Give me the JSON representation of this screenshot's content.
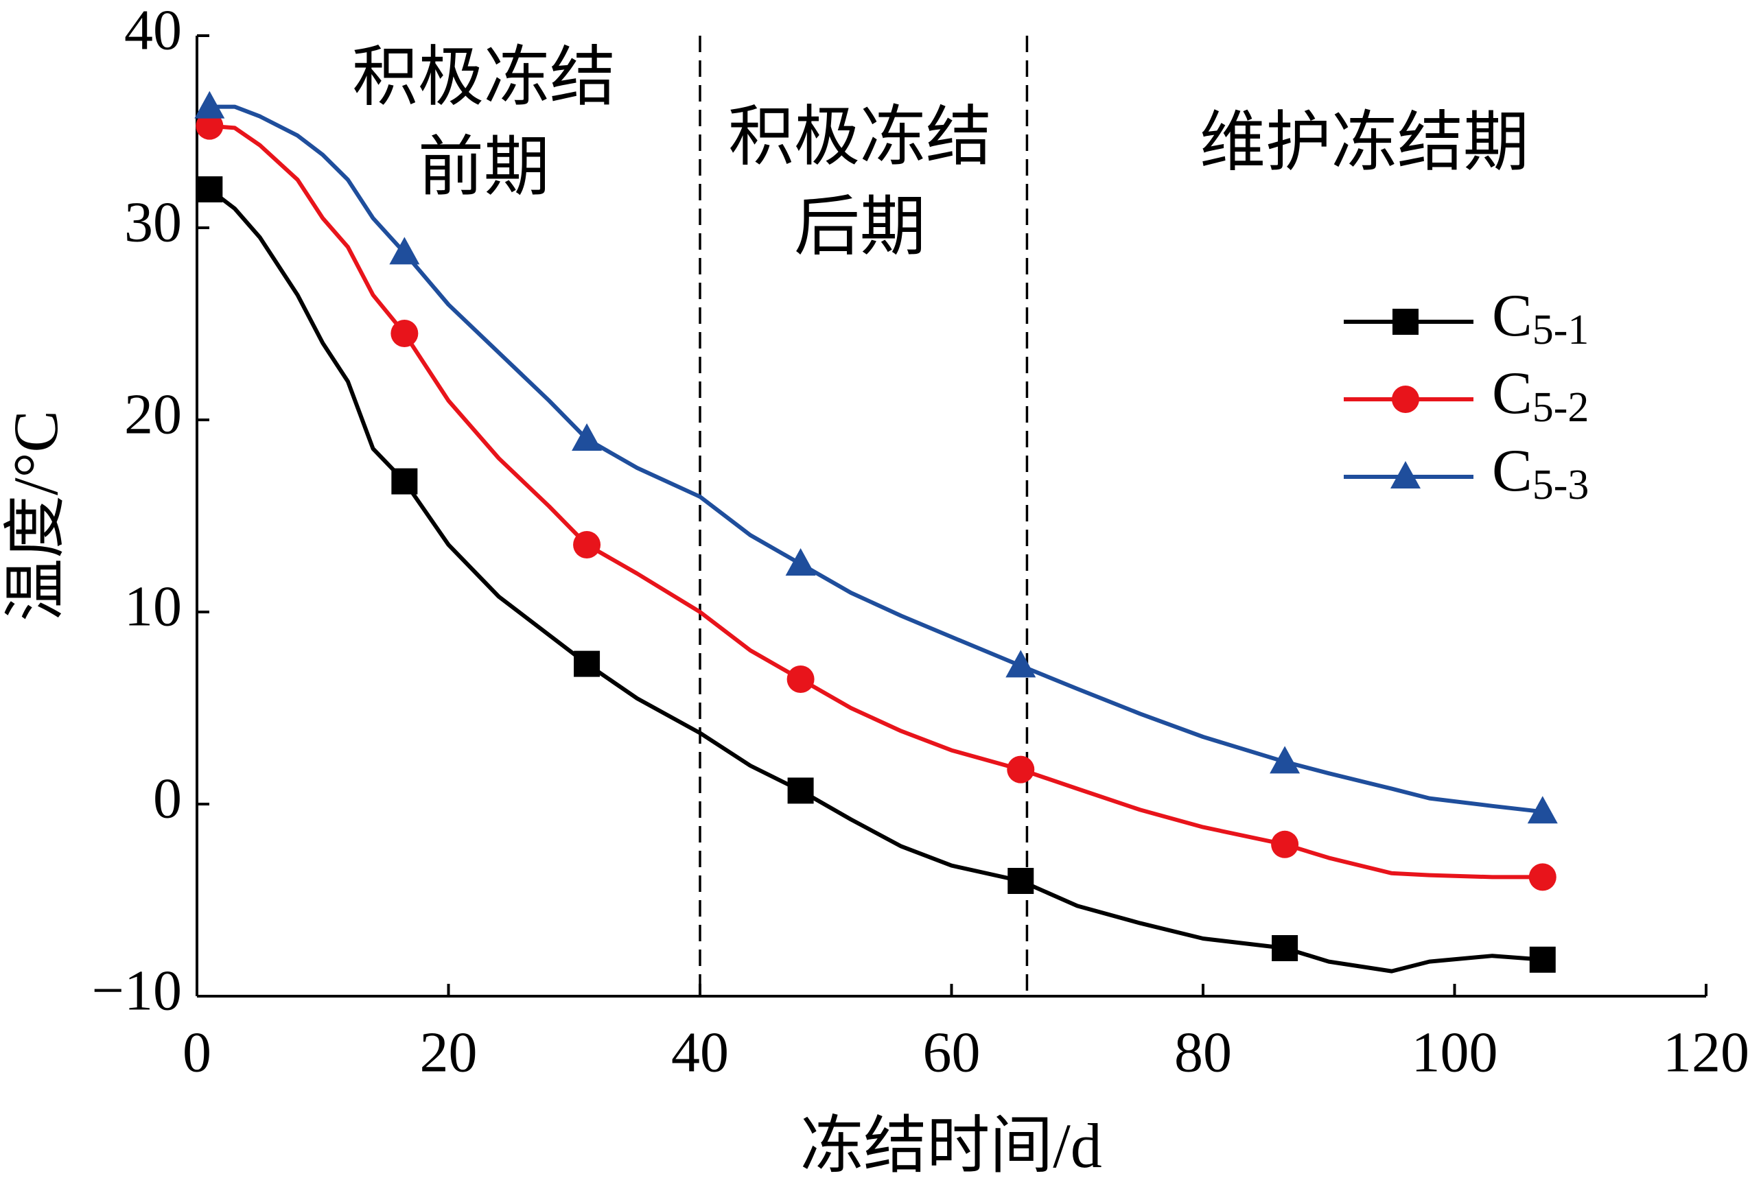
{
  "chart_data": {
    "type": "line",
    "xlabel": "冻结时间/d",
    "ylabel": "温度/°C",
    "x": [
      1,
      3,
      5,
      8,
      10,
      12,
      14,
      16.5,
      20,
      24,
      28,
      31,
      35,
      40,
      44,
      48,
      52,
      56,
      60,
      65.5,
      70,
      75,
      80,
      86.5,
      90,
      95,
      98,
      103,
      107
    ],
    "marker_x": [
      1,
      16.5,
      31,
      48,
      65.5,
      86.5,
      107
    ],
    "series": [
      {
        "name": "C5-1",
        "color": "#000000",
        "marker": "square",
        "values": [
          32,
          31,
          29.5,
          26.5,
          24,
          22,
          18.5,
          16.8,
          13.5,
          10.8,
          8.8,
          7.3,
          5.5,
          3.7,
          2,
          0.7,
          -0.8,
          -2.2,
          -3.2,
          -4,
          -5.3,
          -6.2,
          -7,
          -7.5,
          -8.2,
          -8.7,
          -8.2,
          -7.9,
          -8.1
        ]
      },
      {
        "name": "C5-2",
        "color": "#e8141b",
        "marker": "circle",
        "values": [
          35.3,
          35.2,
          34.3,
          32.5,
          30.5,
          29,
          26.5,
          24.5,
          21,
          18,
          15.5,
          13.5,
          12,
          10,
          8,
          6.5,
          5,
          3.8,
          2.8,
          1.8,
          0.8,
          -0.3,
          -1.2,
          -2.1,
          -2.8,
          -3.6,
          -3.7,
          -3.8,
          -3.8
        ]
      },
      {
        "name": "C5-3",
        "color": "#1f4e9c",
        "marker": "triangle",
        "values": [
          36.3,
          36.3,
          35.8,
          34.8,
          33.8,
          32.5,
          30.5,
          28.7,
          26,
          23.5,
          21,
          19,
          17.5,
          16,
          14,
          12.5,
          11,
          9.8,
          8.7,
          7.2,
          6,
          4.7,
          3.5,
          2.2,
          1.6,
          0.8,
          0.3,
          -0.1,
          -0.4
        ]
      }
    ],
    "dividers": [
      40,
      66
    ],
    "phases": [
      {
        "lines": [
          "积极冻结",
          "前期"
        ]
      },
      {
        "lines": [
          "积极冻结",
          "后期"
        ]
      },
      {
        "lines": [
          "维护冻结期"
        ]
      }
    ],
    "xlim": [
      0,
      120
    ],
    "xticks": [
      0,
      20,
      40,
      60,
      80,
      100,
      120
    ],
    "ylim": [
      -10,
      40
    ],
    "yticks": [
      {
        "value": -10,
        "label": "−10"
      },
      0,
      10,
      20,
      30,
      40
    ],
    "grid": false,
    "legend": "upper right"
  }
}
